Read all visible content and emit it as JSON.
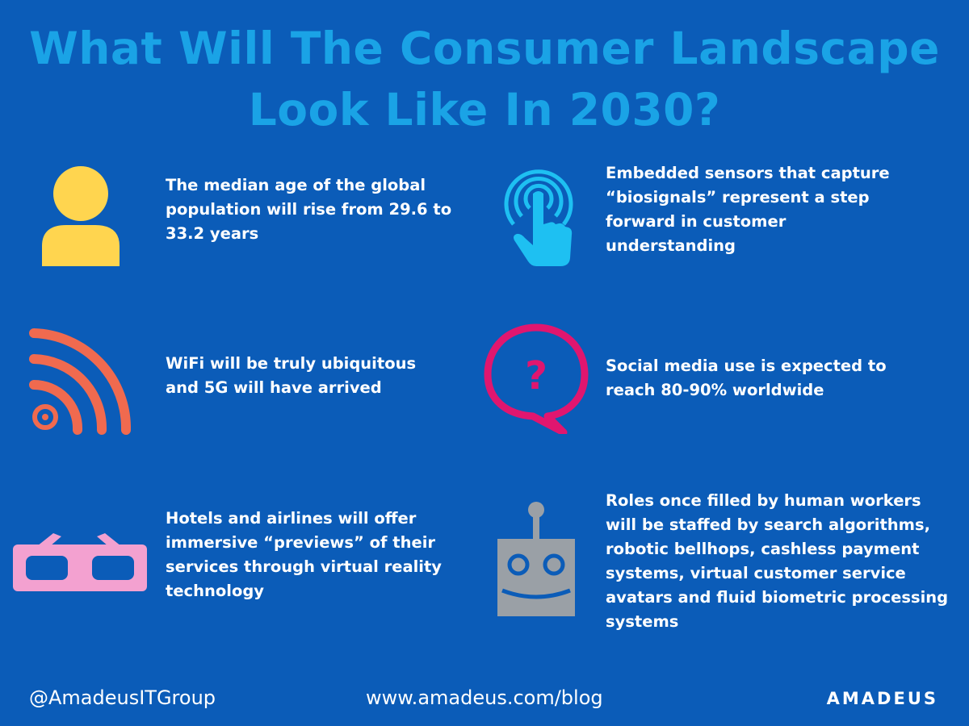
{
  "colors": {
    "background": "#0b5cb8",
    "title": "#1aa3e6",
    "text": "#ffffff",
    "person_icon": "#ffd54f",
    "wifi_icon": "#f06a4f",
    "glasses_icon": "#f3a1d0",
    "touch_icon": "#1ec0f2",
    "chat_icon": "#e0166f",
    "robot_icon": "#9aa0a6"
  },
  "title": {
    "line1": "What Will The Consumer Landscape",
    "line2": "Look Like In 2030?"
  },
  "items": [
    {
      "icon": "person-icon",
      "lines": [
        "The median age of the global",
        "population will rise from 29.6 to",
        "33.2 years"
      ]
    },
    {
      "icon": "touch-signal-icon",
      "lines": [
        "Embedded sensors that capture",
        "“biosignals” represent a step",
        "forward in customer",
        "understanding"
      ]
    },
    {
      "icon": "wifi-icon",
      "lines": [
        "WiFi will be truly ubiquitous",
        "and 5G will have arrived"
      ]
    },
    {
      "icon": "question-bubble-icon",
      "lines": [
        "Social media use is expected to",
        "reach 80-90% worldwide"
      ]
    },
    {
      "icon": "3d-glasses-icon",
      "lines": [
        "Hotels and airlines will offer",
        "immersive “previews” of their",
        "services through virtual reality",
        "technology"
      ]
    },
    {
      "icon": "robot-icon",
      "lines": [
        "Roles once filled by human workers",
        "will be staffed by search algorithms,",
        "robotic bellhops, cashless payment",
        "systems, virtual customer service",
        "avatars and fluid biometric processing",
        "systems"
      ]
    }
  ],
  "footer": {
    "handle": "@AmadeusITGroup",
    "url": "www.amadeus.com/blog",
    "logo": "amadeus"
  }
}
